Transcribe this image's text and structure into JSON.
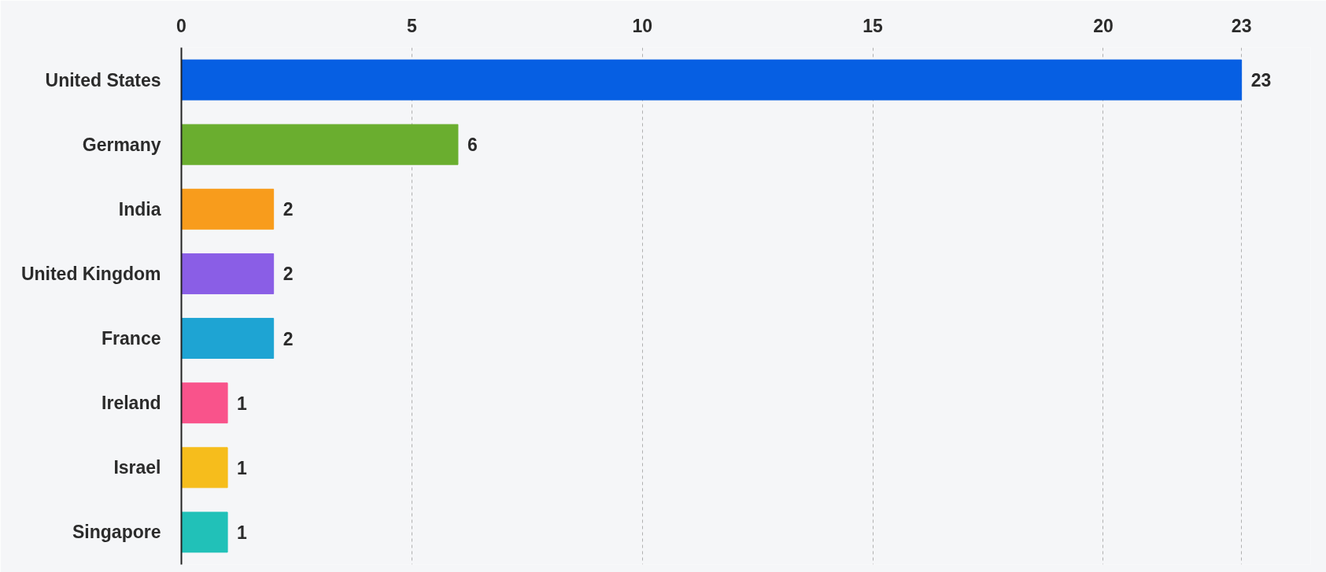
{
  "chart_data": {
    "type": "bar",
    "orientation": "horizontal",
    "categories": [
      "United States",
      "Germany",
      "India",
      "United Kingdom",
      "France",
      "Ireland",
      "Israel",
      "Singapore"
    ],
    "values": [
      23,
      6,
      2,
      2,
      2,
      1,
      1,
      1
    ],
    "colors": [
      "#065fe3",
      "#6aae2f",
      "#f89c1c",
      "#8a5ee6",
      "#1ea4d3",
      "#f9538b",
      "#f6bd1c",
      "#21c1b8"
    ],
    "xlim": [
      0,
      24.5
    ],
    "xticks": [
      0,
      5,
      10,
      15,
      20,
      23
    ],
    "grid": "x",
    "data_labels": true
  }
}
